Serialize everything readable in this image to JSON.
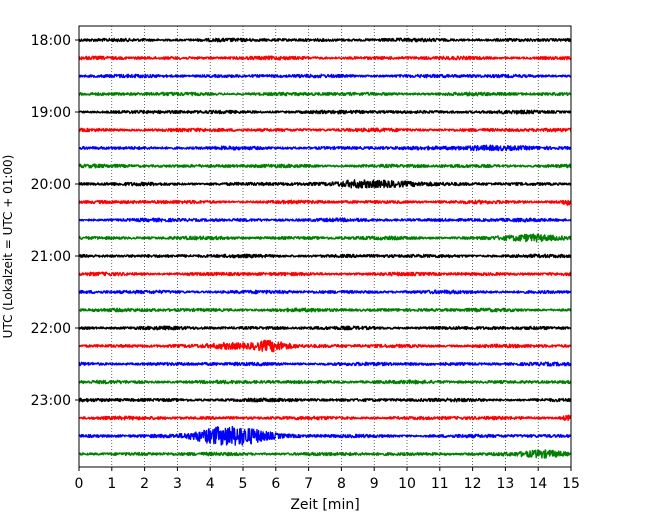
{
  "chart_data": {
    "type": "line",
    "title": "",
    "xlabel": "Zeit  [min]",
    "ylabel": "UTC (Lokalzeit = UTC + 01:00)",
    "xlim": [
      0,
      15
    ],
    "x_ticks": [
      "0",
      "1",
      "2",
      "3",
      "4",
      "5",
      "6",
      "7",
      "8",
      "9",
      "10",
      "11",
      "12",
      "13",
      "14",
      "15"
    ],
    "y_ticks": [
      "18:00",
      "19:00",
      "20:00",
      "21:00",
      "22:00",
      "23:00"
    ],
    "grid": "vertical dotted lines at each minute",
    "trace_interval_minutes": 15,
    "trace_colors": [
      "#000000",
      "#ff0000",
      "#0000ff",
      "#008000"
    ],
    "series": [
      {
        "start": "18:00",
        "color": "#000000",
        "events": []
      },
      {
        "start": "18:15",
        "color": "#ff0000",
        "events": []
      },
      {
        "start": "18:30",
        "color": "#0000ff",
        "events": []
      },
      {
        "start": "18:45",
        "color": "#008000",
        "events": []
      },
      {
        "start": "19:00",
        "color": "#000000",
        "events": []
      },
      {
        "start": "19:15",
        "color": "#ff0000",
        "events": []
      },
      {
        "start": "19:30",
        "color": "#0000ff",
        "events": [
          {
            "t": 12.4,
            "amp": 1.3,
            "dur": 1.5
          }
        ]
      },
      {
        "start": "19:45",
        "color": "#008000",
        "events": []
      },
      {
        "start": "20:00",
        "color": "#000000",
        "events": [
          {
            "t": 9.3,
            "amp": 1.9,
            "dur": 1.4
          },
          {
            "t": 8.4,
            "amp": 1.4,
            "dur": 0.8
          }
        ]
      },
      {
        "start": "20:15",
        "color": "#ff0000",
        "events": [
          {
            "t": 14.9,
            "amp": 1.4,
            "dur": 0.3
          }
        ]
      },
      {
        "start": "20:30",
        "color": "#0000ff",
        "events": []
      },
      {
        "start": "20:45",
        "color": "#008000",
        "events": [
          {
            "t": 13.8,
            "amp": 1.8,
            "dur": 1.2
          }
        ]
      },
      {
        "start": "21:00",
        "color": "#000000",
        "events": []
      },
      {
        "start": "21:15",
        "color": "#ff0000",
        "events": []
      },
      {
        "start": "21:30",
        "color": "#0000ff",
        "events": []
      },
      {
        "start": "21:45",
        "color": "#008000",
        "events": []
      },
      {
        "start": "22:00",
        "color": "#000000",
        "events": []
      },
      {
        "start": "22:15",
        "color": "#ff0000",
        "events": [
          {
            "t": 5.8,
            "amp": 3.5,
            "dur": 0.9
          },
          {
            "t": 4.6,
            "amp": 1.4,
            "dur": 0.8
          }
        ]
      },
      {
        "start": "22:30",
        "color": "#0000ff",
        "events": []
      },
      {
        "start": "22:45",
        "color": "#008000",
        "events": []
      },
      {
        "start": "23:00",
        "color": "#000000",
        "events": []
      },
      {
        "start": "23:15",
        "color": "#ff0000",
        "events": [
          {
            "t": 14.9,
            "amp": 1.3,
            "dur": 0.3
          }
        ]
      },
      {
        "start": "23:30",
        "color": "#0000ff",
        "events": [
          {
            "t": 4.85,
            "amp": 6.0,
            "dur": 1.4
          },
          {
            "t": 4.0,
            "amp": 2.5,
            "dur": 1.0
          }
        ]
      },
      {
        "start": "23:45",
        "color": "#008000",
        "events": [
          {
            "t": 14.2,
            "amp": 2.0,
            "dur": 1.0
          }
        ]
      }
    ]
  }
}
